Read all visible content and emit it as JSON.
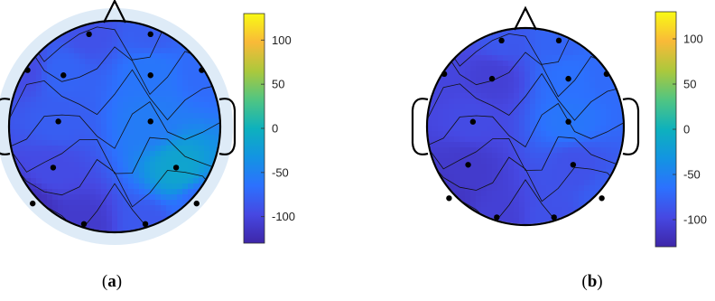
{
  "chart_data": [
    {
      "type": "heatmap",
      "subtype": "eeg-topoplot",
      "panel_label": "a",
      "colorbar": {
        "colormap": "parula",
        "range": [
          -130,
          130
        ],
        "ticks": [
          100,
          50,
          0,
          -50,
          -100
        ],
        "tick_labels": [
          "100",
          "50",
          "0",
          "-50",
          "-100"
        ]
      },
      "electrodes": [
        {
          "x": -0.25,
          "y": 0.9,
          "value": -90
        },
        {
          "x": 0.35,
          "y": 0.9,
          "value": -80
        },
        {
          "x": -0.85,
          "y": 0.55,
          "value": -95
        },
        {
          "x": -0.5,
          "y": 0.5,
          "value": -75
        },
        {
          "x": 0.35,
          "y": 0.5,
          "value": -60
        },
        {
          "x": 0.85,
          "y": 0.55,
          "value": -70
        },
        {
          "x": -0.55,
          "y": 0.05,
          "value": -80
        },
        {
          "x": 0.35,
          "y": 0.05,
          "value": -55
        },
        {
          "x": -0.6,
          "y": -0.4,
          "value": -95
        },
        {
          "x": 0.6,
          "y": -0.4,
          "value": -15
        },
        {
          "x": -0.8,
          "y": -0.75,
          "value": -120
        },
        {
          "x": 0.8,
          "y": -0.75,
          "value": -70
        },
        {
          "x": -0.3,
          "y": -0.95,
          "value": -110
        },
        {
          "x": 0.3,
          "y": -0.95,
          "value": -85
        }
      ]
    },
    {
      "type": "heatmap",
      "subtype": "eeg-topoplot",
      "panel_label": "b",
      "colorbar": {
        "colormap": "parula",
        "range": [
          -130,
          130
        ],
        "ticks": [
          100,
          50,
          0,
          -50,
          -100
        ],
        "tick_labels": [
          "100",
          "50",
          "0",
          "-50",
          "-100"
        ]
      },
      "electrodes": [
        {
          "x": -0.25,
          "y": 0.9,
          "value": -85
        },
        {
          "x": 0.35,
          "y": 0.9,
          "value": -75
        },
        {
          "x": -0.85,
          "y": 0.55,
          "value": -100
        },
        {
          "x": -0.35,
          "y": 0.5,
          "value": -105
        },
        {
          "x": 0.45,
          "y": 0.5,
          "value": -65
        },
        {
          "x": 0.85,
          "y": 0.55,
          "value": -70
        },
        {
          "x": -0.55,
          "y": 0.05,
          "value": -95
        },
        {
          "x": 0.45,
          "y": 0.05,
          "value": -60
        },
        {
          "x": -0.6,
          "y": -0.4,
          "value": -110
        },
        {
          "x": 0.5,
          "y": -0.4,
          "value": -90
        },
        {
          "x": -0.8,
          "y": -0.75,
          "value": -115
        },
        {
          "x": 0.8,
          "y": -0.75,
          "value": -80
        },
        {
          "x": -0.3,
          "y": -0.95,
          "value": -105
        },
        {
          "x": 0.3,
          "y": -0.95,
          "value": -90
        }
      ]
    }
  ]
}
